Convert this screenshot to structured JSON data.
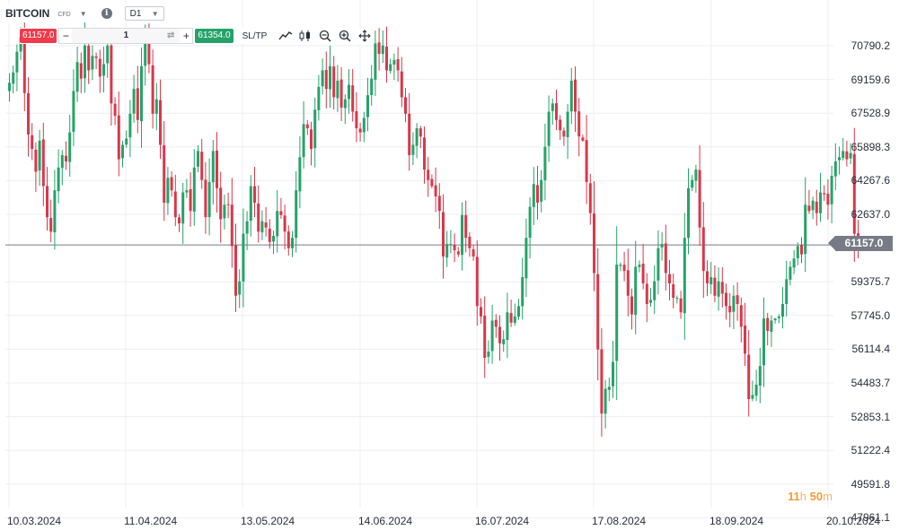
{
  "header": {
    "symbol": "BITCOIN",
    "symbol_tag": "CFD",
    "timeframe": "D1"
  },
  "trade": {
    "sell_price": "61157.0",
    "quantity": "1",
    "buy_price": "61354.0",
    "sltp_label": "SL/TP"
  },
  "axis": {
    "y_ticks": [
      "70790.2",
      "69159.6",
      "67528.9",
      "65898.3",
      "64267.6",
      "62637.0",
      "59375.7",
      "57745.0",
      "56114.4",
      "54483.7",
      "52853.1",
      "51222.4",
      "49591.8",
      "47961.1"
    ],
    "x_ticks": [
      "10.03.2024",
      "11.04.2024",
      "13.05.2024",
      "14.06.2024",
      "16.07.2024",
      "17.08.2024",
      "18.09.2024",
      "20.10.2024"
    ]
  },
  "current_price": "61157.0",
  "timer": {
    "hours": "11",
    "h_unit": "h",
    "minutes": "50",
    "m_unit": "m"
  },
  "colors": {
    "up": "#26a269",
    "down": "#d9374b",
    "price_line": "#787b86",
    "grid": "#eeeff2"
  },
  "chart_data": {
    "type": "candlestick",
    "y_range": [
      47961.1,
      71500
    ],
    "close": [
      69000,
      69500,
      70500,
      71200,
      68500,
      66500,
      65800,
      64700,
      66200,
      64000,
      62500,
      61800,
      63800,
      64900,
      65500,
      65200,
      66600,
      68600,
      70000,
      69200,
      70800,
      69600,
      70300,
      70200,
      69300,
      69900,
      70800,
      68000,
      67400,
      65300,
      66000,
      66300,
      67500,
      68700,
      67200,
      69800,
      71000,
      69900,
      67500,
      68200,
      66000,
      63200,
      64400,
      63800,
      62500,
      62200,
      63700,
      63800,
      62800,
      64900,
      65700,
      64300,
      62500,
      64200,
      65700,
      63900,
      62400,
      63100,
      63100,
      61100,
      58700,
      59400,
      61700,
      62300,
      64000,
      63200,
      61800,
      62300,
      62000,
      61300,
      61600,
      62800,
      62600,
      61800,
      61000,
      61500,
      63800,
      65400,
      67000,
      66800,
      65800,
      67700,
      68800,
      69600,
      68700,
      69800,
      68300,
      69100,
      67800,
      68200,
      68900,
      67600,
      66800,
      66600,
      67300,
      68400,
      69200,
      70900,
      70400,
      70800,
      69600,
      69900,
      70100,
      69600,
      68300,
      67500,
      65500,
      66000,
      66800,
      66400,
      64800,
      64300,
      64000,
      63500,
      62800,
      60600,
      61200,
      61200,
      60900,
      60700,
      62600,
      61500,
      61000,
      60600,
      58200,
      57700,
      55700,
      56000,
      57500,
      57200,
      56400,
      56600,
      57900,
      57400,
      57700,
      58200,
      59600,
      61500,
      63000,
      64100,
      63200,
      64300,
      65900,
      67600,
      68000,
      67200,
      66700,
      66400,
      67600,
      69100,
      67600,
      66400,
      66200,
      64200,
      62700,
      59800,
      56100,
      53000,
      54200,
      54300,
      55500,
      60200,
      60200,
      59900,
      58700,
      57800,
      60100,
      60200,
      59300,
      58300,
      58500,
      59400,
      61000,
      61200,
      59800,
      59300,
      58600,
      58600,
      57900,
      61500,
      63900,
      64300,
      64800,
      62000,
      59900,
      59300,
      59600,
      58700,
      59400,
      58800,
      58200,
      57900,
      58700,
      58300,
      57200,
      55900,
      53700,
      53900,
      54400,
      55300,
      57600,
      57000,
      57500,
      57600,
      57700,
      58300,
      59500,
      60100,
      60500,
      61100,
      60700,
      63100,
      62800,
      63300,
      62700,
      63700,
      63600,
      63100,
      64500,
      65200,
      65400,
      65700,
      65300,
      65600,
      61700,
      61200
    ]
  }
}
